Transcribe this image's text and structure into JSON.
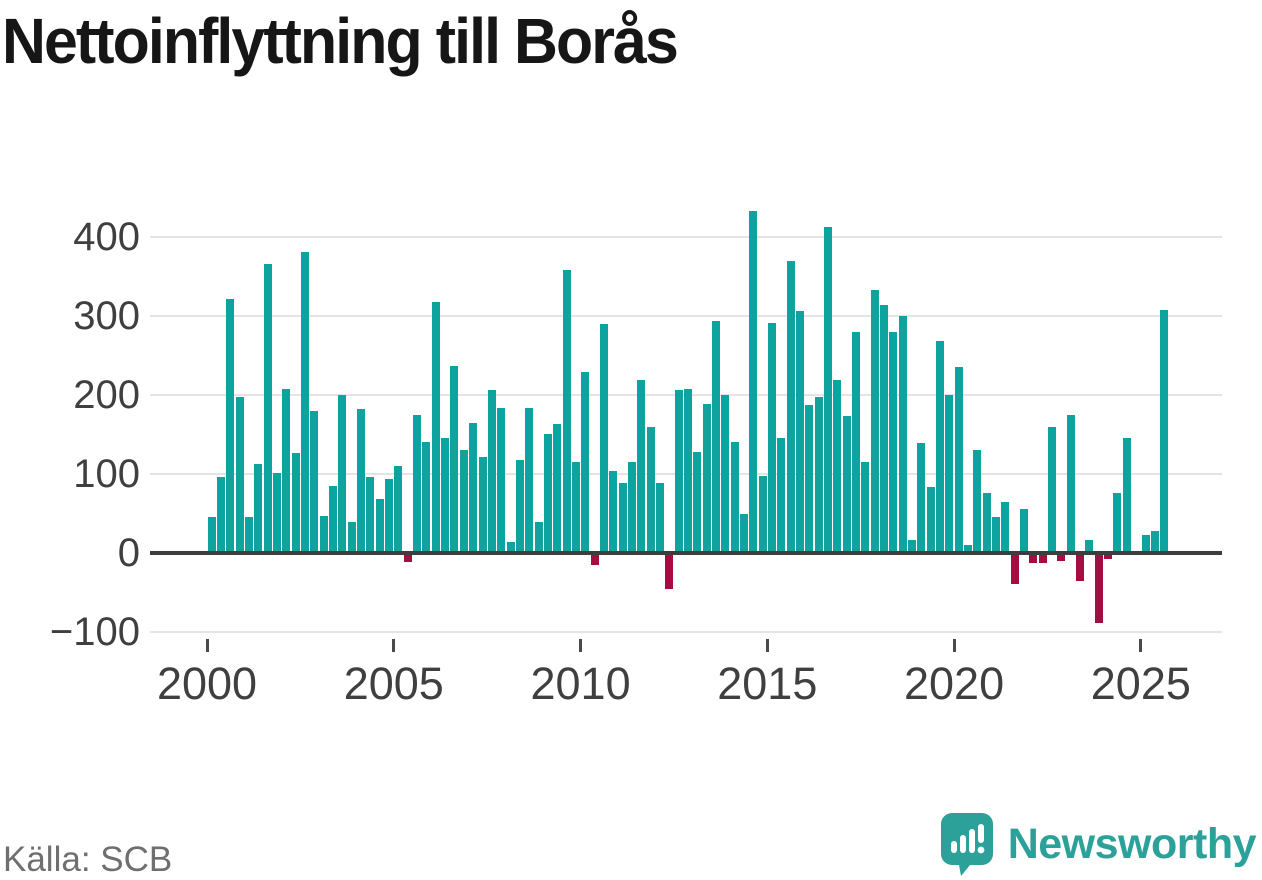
{
  "header": {
    "title": "Nettoinflyttning till Borås"
  },
  "footer": {
    "source": "Källa: SCB",
    "brand": "Newsworthy"
  },
  "colors": {
    "positive_bar": "#0FA3A0",
    "negative_bar": "#A50D42",
    "brand_teal": "#2CA19A",
    "axis_line": "#3D3D3D",
    "gridline": "#E4E4E4",
    "tick_text": "#3F3F3F",
    "source_text": "#6F6F6F"
  },
  "y_axis": {
    "ticks": [
      400,
      300,
      200,
      100,
      0,
      -100
    ]
  },
  "x_axis": {
    "ticks": [
      2000,
      2005,
      2010,
      2015,
      2020,
      2025
    ]
  },
  "chart_data": {
    "type": "bar",
    "title": "Nettoinflyttning till Borås",
    "source": "Källa: SCB",
    "ylabel": "",
    "xlabel": "",
    "ylim": [
      -100,
      440
    ],
    "grid": true,
    "legend": false,
    "quarters": [
      "2000 Q1",
      "2000 Q2",
      "2000 Q3",
      "2000 Q4",
      "2001 Q1",
      "2001 Q2",
      "2001 Q3",
      "2001 Q4",
      "2002 Q1",
      "2002 Q2",
      "2002 Q3",
      "2002 Q4",
      "2003 Q1",
      "2003 Q2",
      "2003 Q3",
      "2003 Q4",
      "2004 Q1",
      "2004 Q2",
      "2004 Q3",
      "2004 Q4",
      "2005 Q1",
      "2005 Q2",
      "2005 Q3",
      "2005 Q4",
      "2006 Q1",
      "2006 Q2",
      "2006 Q3",
      "2006 Q4",
      "2007 Q1",
      "2007 Q2",
      "2007 Q3",
      "2007 Q4",
      "2008 Q1",
      "2008 Q2",
      "2008 Q3",
      "2008 Q4",
      "2009 Q1",
      "2009 Q2",
      "2009 Q3",
      "2009 Q4",
      "2010 Q1",
      "2010 Q2",
      "2010 Q3",
      "2010 Q4",
      "2011 Q1",
      "2011 Q2",
      "2011 Q3",
      "2011 Q4",
      "2012 Q1",
      "2012 Q2",
      "2012 Q3",
      "2012 Q4",
      "2013 Q1",
      "2013 Q2",
      "2013 Q3",
      "2013 Q4",
      "2014 Q1",
      "2014 Q2",
      "2014 Q3",
      "2014 Q4",
      "2015 Q1",
      "2015 Q2",
      "2015 Q3",
      "2015 Q4",
      "2016 Q1",
      "2016 Q2",
      "2016 Q3",
      "2016 Q4",
      "2017 Q1",
      "2017 Q2",
      "2017 Q3",
      "2017 Q4",
      "2018 Q1",
      "2018 Q2",
      "2018 Q3",
      "2018 Q4",
      "2019 Q1",
      "2019 Q2",
      "2019 Q3",
      "2019 Q4",
      "2020 Q1",
      "2020 Q2",
      "2020 Q3",
      "2020 Q4",
      "2021 Q1",
      "2021 Q2",
      "2021 Q3",
      "2021 Q4",
      "2022 Q1",
      "2022 Q2",
      "2022 Q3",
      "2022 Q4",
      "2023 Q1",
      "2023 Q2",
      "2023 Q3",
      "2023 Q4",
      "2024 Q1",
      "2024 Q2",
      "2024 Q3",
      "2024 Q4",
      "2025 Q1",
      "2025 Q2",
      "2025 Q3"
    ],
    "values": [
      45,
      96,
      322,
      197,
      46,
      113,
      366,
      101,
      207,
      127,
      381,
      180,
      47,
      85,
      200,
      39,
      182,
      96,
      68,
      94,
      110,
      -12,
      175,
      141,
      318,
      146,
      237,
      130,
      164,
      121,
      206,
      184,
      14,
      118,
      183,
      39,
      151,
      163,
      358,
      115,
      229,
      -15,
      290,
      104,
      89,
      115,
      219,
      159,
      89,
      -46,
      206,
      208,
      128,
      189,
      294,
      200,
      141,
      49,
      433,
      98,
      291,
      146,
      370,
      306,
      187,
      198,
      413,
      219,
      174,
      280,
      115,
      333,
      314,
      280,
      300,
      17,
      139,
      83,
      268,
      200,
      236,
      10,
      130,
      76,
      45,
      65,
      -39,
      56,
      -13,
      -13,
      159,
      -10,
      175,
      -36,
      16,
      -88,
      -7,
      76,
      146,
      0,
      23,
      28,
      307
    ]
  }
}
